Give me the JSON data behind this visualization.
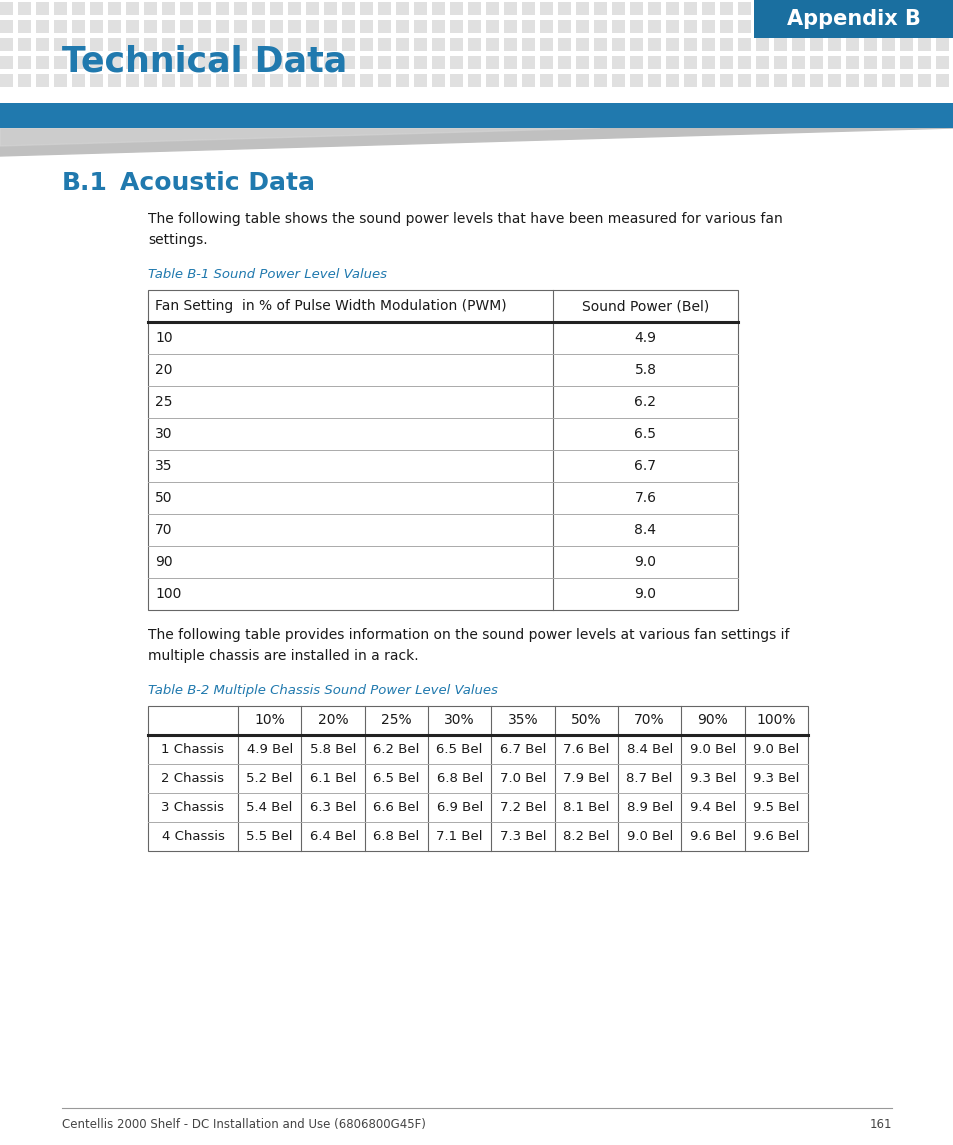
{
  "page_bg": "#ffffff",
  "header_tab_text": "Appendix B",
  "header_title": "Technical Data",
  "section_title": "B.1",
  "section_title2": "Acoustic Data",
  "section_color": "#2079ae",
  "intro_text1": "The following table shows the sound power levels that have been measured for various fan\nsettings.",
  "table1_title": "Table B-1 Sound Power Level Values",
  "table1_color": "#2079ae",
  "table1_headers": [
    "Fan Setting  in % of Pulse Width Modulation (PWM)",
    "Sound Power (Bel)"
  ],
  "table1_data": [
    [
      "10",
      "4.9"
    ],
    [
      "20",
      "5.8"
    ],
    [
      "25",
      "6.2"
    ],
    [
      "30",
      "6.5"
    ],
    [
      "35",
      "6.7"
    ],
    [
      "50",
      "7.6"
    ],
    [
      "70",
      "8.4"
    ],
    [
      "90",
      "9.0"
    ],
    [
      "100",
      "9.0"
    ]
  ],
  "intro_text2": "The following table provides information on the sound power levels at various fan settings if\nmultiple chassis are installed in a rack.",
  "table2_title": "Table B-2 Multiple Chassis Sound Power Level Values",
  "table2_color": "#2079ae",
  "table2_headers": [
    "",
    "10%",
    "20%",
    "25%",
    "30%",
    "35%",
    "50%",
    "70%",
    "90%",
    "100%"
  ],
  "table2_data": [
    [
      "1 Chassis",
      "4.9 Bel",
      "5.8 Bel",
      "6.2 Bel",
      "6.5 Bel",
      "6.7 Bel",
      "7.6 Bel",
      "8.4 Bel",
      "9.0 Bel",
      "9.0 Bel"
    ],
    [
      "2 Chassis",
      "5.2 Bel",
      "6.1 Bel",
      "6.5 Bel",
      "6.8 Bel",
      "7.0 Bel",
      "7.9 Bel",
      "8.7 Bel",
      "9.3 Bel",
      "9.3 Bel"
    ],
    [
      "3 Chassis",
      "5.4 Bel",
      "6.3 Bel",
      "6.6 Bel",
      "6.9 Bel",
      "7.2 Bel",
      "8.1 Bel",
      "8.9 Bel",
      "9.4 Bel",
      "9.5 Bel"
    ],
    [
      "4 Chassis",
      "5.5 Bel",
      "6.4 Bel",
      "6.8 Bel",
      "7.1 Bel",
      "7.3 Bel",
      "8.2 Bel",
      "9.0 Bel",
      "9.6 Bel",
      "9.6 Bel"
    ]
  ],
  "footer_text": "Centellis 2000 Shelf - DC Installation and Use (6806800G45F)",
  "footer_page": "161",
  "blue_bar_color": "#2079ae",
  "dot_color": "#e0e0e0",
  "tab_color": "#1a6fa0"
}
